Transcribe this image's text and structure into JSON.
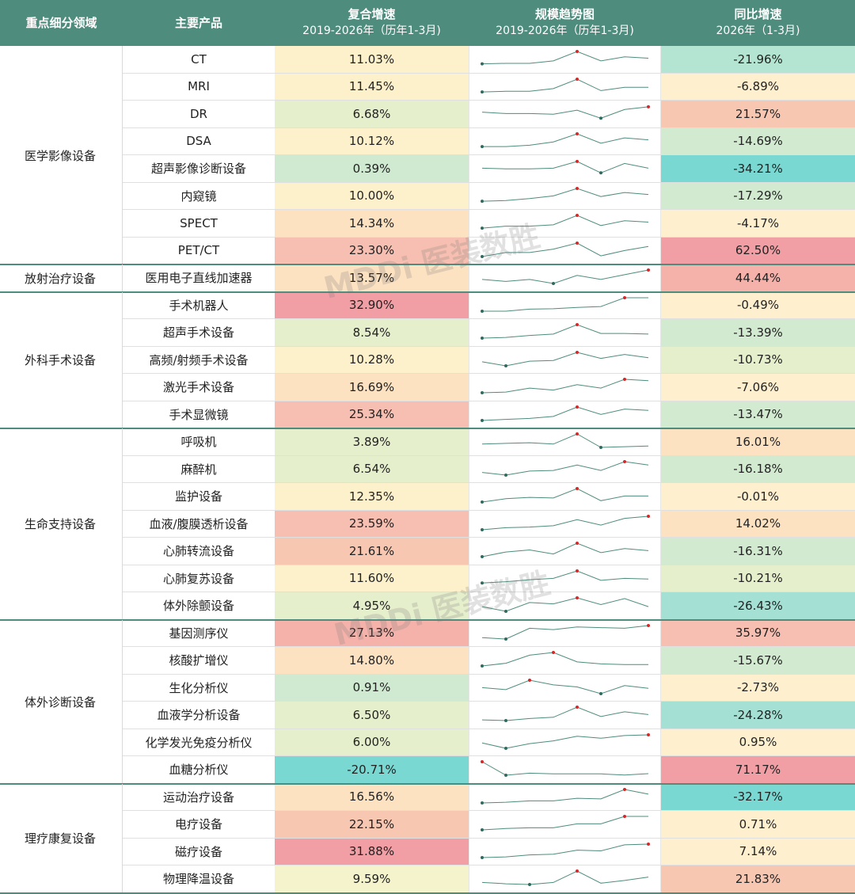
{
  "header": {
    "category": "重点细分领域",
    "product": "主要产品",
    "cagr_title": "复合增速",
    "cagr_sub": "2019-2026年（历年1-3月)",
    "trend_title": "规模趋势图",
    "trend_sub": "2019-2026年（历年1-3月)",
    "yoy_title": "同比增速",
    "yoy_sub": "2026年（1-3月)"
  },
  "watermark": "MDDi 医装数胜",
  "colors": {
    "header_bg": "#4e8c7d",
    "spark_line": "#4e8c7d",
    "spark_max": "#d62728",
    "spark_min": "#2e6b5e"
  },
  "groups": [
    {
      "name": "医学影像设备",
      "rows": [
        {
          "product": "CT",
          "cagr": "11.03%",
          "cagr_bg": "#fdf1cb",
          "yoy": "-21.96%",
          "yoy_bg": "#b4e4d2",
          "trend": [
            0.08,
            0.12,
            0.12,
            0.3,
            1.0,
            0.3,
            0.6,
            0.5
          ]
        },
        {
          "product": "MRI",
          "cagr": "11.45%",
          "cagr_bg": "#fdf1cb",
          "yoy": "-6.89%",
          "yoy_bg": "#fef0cf",
          "trend": [
            0.05,
            0.1,
            0.1,
            0.3,
            1.0,
            0.15,
            0.4,
            0.4
          ]
        },
        {
          "product": "DR",
          "cagr": "6.68%",
          "cagr_bg": "#e6efcc",
          "yoy": "21.57%",
          "yoy_bg": "#f8c7b2",
          "trend": [
            0.55,
            0.45,
            0.45,
            0.4,
            0.7,
            0.1,
            0.75,
            0.95
          ]
        },
        {
          "product": "DSA",
          "cagr": "10.12%",
          "cagr_bg": "#fdf1cb",
          "yoy": "-14.69%",
          "yoy_bg": "#d2ead0",
          "trend": [
            0.05,
            0.05,
            0.15,
            0.4,
            1.0,
            0.3,
            0.7,
            0.55
          ]
        },
        {
          "product": "超声影像诊断设备",
          "cagr": "0.39%",
          "cagr_bg": "#cfead0",
          "yoy": "-34.21%",
          "yoy_bg": "#7ad8d2",
          "trend": [
            0.45,
            0.4,
            0.4,
            0.45,
            0.95,
            0.1,
            0.8,
            0.45
          ]
        },
        {
          "product": "内窥镜",
          "cagr": "10.00%",
          "cagr_bg": "#fdf1cb",
          "yoy": "-17.29%",
          "yoy_bg": "#d2ead0",
          "trend": [
            0.05,
            0.1,
            0.25,
            0.45,
            1.0,
            0.4,
            0.7,
            0.55
          ]
        },
        {
          "product": "SPECT",
          "cagr": "14.34%",
          "cagr_bg": "#fde2c2",
          "yoy": "-4.17%",
          "yoy_bg": "#fef0cf",
          "trend": [
            0.05,
            0.2,
            0.2,
            0.3,
            1.0,
            0.25,
            0.6,
            0.5
          ]
        },
        {
          "product": "PET/CT",
          "cagr": "23.30%",
          "cagr_bg": "#f6bfb1",
          "yoy": "62.50%",
          "yoy_bg": "#f19ea4",
          "trend": [
            0.0,
            0.3,
            0.3,
            0.55,
            1.0,
            0.05,
            0.45,
            0.75
          ]
        },
        {
          "category_start": false
        }
      ]
    }
  ],
  "rows": [
    {
      "group": 0,
      "product": "CT",
      "cagr": "11.03%",
      "cagr_bg": "#fdf1cb",
      "yoy": "-21.96%",
      "yoy_bg": "#b4e4d2",
      "trend": [
        0.08,
        0.12,
        0.12,
        0.3,
        1.0,
        0.3,
        0.6,
        0.5
      ]
    },
    {
      "group": 0,
      "product": "MRI",
      "cagr": "11.45%",
      "cagr_bg": "#fdf1cb",
      "yoy": "-6.89%",
      "yoy_bg": "#fef0cf",
      "trend": [
        0.05,
        0.1,
        0.1,
        0.3,
        1.0,
        0.15,
        0.4,
        0.4
      ]
    },
    {
      "group": 0,
      "product": "DR",
      "cagr": "6.68%",
      "cagr_bg": "#e6efcc",
      "yoy": "21.57%",
      "yoy_bg": "#f8c7b2",
      "trend": [
        0.55,
        0.45,
        0.45,
        0.4,
        0.7,
        0.1,
        0.75,
        0.95
      ]
    },
    {
      "group": 0,
      "product": "DSA",
      "cagr": "10.12%",
      "cagr_bg": "#fdf1cb",
      "yoy": "-14.69%",
      "yoy_bg": "#d2ead0",
      "trend": [
        0.05,
        0.05,
        0.15,
        0.4,
        1.0,
        0.3,
        0.7,
        0.55
      ]
    },
    {
      "group": 0,
      "product": "超声影像诊断设备",
      "cagr": "0.39%",
      "cagr_bg": "#cfead0",
      "yoy": "-34.21%",
      "yoy_bg": "#7ad8d2",
      "trend": [
        0.45,
        0.4,
        0.4,
        0.45,
        0.95,
        0.1,
        0.8,
        0.45
      ]
    },
    {
      "group": 0,
      "product": "内窥镜",
      "cagr": "10.00%",
      "cagr_bg": "#fdf1cb",
      "yoy": "-17.29%",
      "yoy_bg": "#d2ead0",
      "trend": [
        0.05,
        0.1,
        0.25,
        0.45,
        1.0,
        0.4,
        0.7,
        0.55
      ]
    },
    {
      "group": 0,
      "product": "SPECT",
      "cagr": "14.34%",
      "cagr_bg": "#fde2c2",
      "yoy": "-4.17%",
      "yoy_bg": "#fef0cf",
      "trend": [
        0.05,
        0.2,
        0.2,
        0.3,
        1.0,
        0.25,
        0.6,
        0.5
      ]
    },
    {
      "group": 0,
      "product": "PET/CT",
      "cagr": "23.30%",
      "cagr_bg": "#f6bfb1",
      "yoy": "62.50%",
      "yoy_bg": "#f19ea4",
      "trend": [
        0.0,
        0.3,
        0.3,
        0.55,
        1.0,
        0.05,
        0.45,
        0.75
      ]
    },
    {
      "group": 1,
      "product": "医用电子直线加速器",
      "cagr": "13.57%",
      "cagr_bg": "#fde2c2",
      "yoy": "44.44%",
      "yoy_bg": "#f5b2ab",
      "trend": [
        0.3,
        0.15,
        0.3,
        0.0,
        0.6,
        0.3,
        0.65,
        1.0
      ]
    },
    {
      "group": 2,
      "product": "手术机器人",
      "cagr": "32.90%",
      "cagr_bg": "#f19ea4",
      "yoy": "-0.49%",
      "yoy_bg": "#fef0cf",
      "trend": [
        0.0,
        0.0,
        0.15,
        0.18,
        0.28,
        0.35,
        1.0,
        1.0
      ]
    },
    {
      "group": 2,
      "product": "超声手术设备",
      "cagr": "8.54%",
      "cagr_bg": "#e6efcc",
      "yoy": "-13.39%",
      "yoy_bg": "#d2ead0",
      "trend": [
        0.0,
        0.05,
        0.2,
        0.3,
        1.0,
        0.35,
        0.35,
        0.3
      ]
    },
    {
      "group": 2,
      "product": "高频/射频手术设备",
      "cagr": "10.28%",
      "cagr_bg": "#fdf1cb",
      "yoy": "-10.73%",
      "yoy_bg": "#e6efcc",
      "trend": [
        0.3,
        0.0,
        0.35,
        0.4,
        1.0,
        0.55,
        0.85,
        0.6
      ]
    },
    {
      "group": 2,
      "product": "激光手术设备",
      "cagr": "16.69%",
      "cagr_bg": "#fde2c2",
      "yoy": "-7.06%",
      "yoy_bg": "#fef0cf",
      "trend": [
        0.0,
        0.05,
        0.35,
        0.2,
        0.6,
        0.35,
        1.0,
        0.9
      ]
    },
    {
      "group": 2,
      "product": "手术显微镜",
      "cagr": "25.34%",
      "cagr_bg": "#f6bfb1",
      "yoy": "-13.47%",
      "yoy_bg": "#d2ead0",
      "trend": [
        0.0,
        0.08,
        0.15,
        0.3,
        1.0,
        0.45,
        0.85,
        0.75
      ]
    },
    {
      "group": 3,
      "product": "呼吸机",
      "cagr": "3.89%",
      "cagr_bg": "#e6efcc",
      "yoy": "16.01%",
      "yoy_bg": "#fde2c2",
      "trend": [
        0.25,
        0.3,
        0.35,
        0.25,
        1.0,
        0.0,
        0.05,
        0.1
      ]
    },
    {
      "group": 3,
      "product": "麻醉机",
      "cagr": "6.54%",
      "cagr_bg": "#e6efcc",
      "yoy": "-16.18%",
      "yoy_bg": "#d2ead0",
      "trend": [
        0.2,
        0.0,
        0.3,
        0.35,
        0.75,
        0.35,
        1.0,
        0.75
      ]
    },
    {
      "group": 3,
      "product": "监护设备",
      "cagr": "12.35%",
      "cagr_bg": "#fdf1cb",
      "yoy": "-0.01%",
      "yoy_bg": "#fef0cf",
      "trend": [
        0.0,
        0.25,
        0.35,
        0.3,
        1.0,
        0.1,
        0.45,
        0.45
      ]
    },
    {
      "group": 3,
      "product": "血液/腹膜透析设备",
      "cagr": "23.59%",
      "cagr_bg": "#f6bfb1",
      "yoy": "14.02%",
      "yoy_bg": "#fde2c2",
      "trend": [
        0.0,
        0.15,
        0.2,
        0.3,
        0.75,
        0.35,
        0.85,
        1.0
      ]
    },
    {
      "group": 3,
      "product": "心肺转流设备",
      "cagr": "21.61%",
      "cagr_bg": "#f8c7b2",
      "yoy": "-16.31%",
      "yoy_bg": "#d2ead0",
      "trend": [
        0.0,
        0.35,
        0.5,
        0.2,
        1.0,
        0.3,
        0.6,
        0.45
      ]
    },
    {
      "group": 3,
      "product": "心肺复苏设备",
      "cagr": "11.60%",
      "cagr_bg": "#fdf1cb",
      "yoy": "-10.21%",
      "yoy_bg": "#e6efcc",
      "trend": [
        0.1,
        0.2,
        0.35,
        0.45,
        1.0,
        0.3,
        0.45,
        0.4
      ]
    },
    {
      "group": 3,
      "product": "体外除颤设备",
      "cagr": "4.95%",
      "cagr_bg": "#e6efcc",
      "yoy": "-26.43%",
      "yoy_bg": "#a4e0d4",
      "trend": [
        0.35,
        0.0,
        0.65,
        0.55,
        1.0,
        0.5,
        0.95,
        0.35
      ]
    },
    {
      "group": 4,
      "product": "基因测序仪",
      "cagr": "27.13%",
      "cagr_bg": "#f5b2ab",
      "yoy": "35.97%",
      "yoy_bg": "#f6bfb1",
      "trend": [
        0.1,
        0.0,
        0.8,
        0.7,
        0.9,
        0.85,
        0.8,
        1.0
      ]
    },
    {
      "group": 4,
      "product": "核酸扩增仪",
      "cagr": "14.80%",
      "cagr_bg": "#fde2c2",
      "yoy": "-15.67%",
      "yoy_bg": "#d2ead0",
      "trend": [
        0.0,
        0.2,
        0.8,
        1.0,
        0.3,
        0.15,
        0.1,
        0.1
      ]
    },
    {
      "group": 4,
      "product": "生化分析仪",
      "cagr": "0.91%",
      "cagr_bg": "#cfead0",
      "yoy": "-2.73%",
      "yoy_bg": "#fef0cf",
      "trend": [
        0.45,
        0.3,
        1.0,
        0.65,
        0.5,
        0.0,
        0.6,
        0.4
      ]
    },
    {
      "group": 4,
      "product": "血液学分析设备",
      "cagr": "6.50%",
      "cagr_bg": "#e6efcc",
      "yoy": "-24.28%",
      "yoy_bg": "#a4e0d4",
      "trend": [
        0.05,
        0.0,
        0.15,
        0.25,
        1.0,
        0.3,
        0.65,
        0.45
      ]
    },
    {
      "group": 4,
      "product": "化学发光免疫分析仪",
      "cagr": "6.00%",
      "cagr_bg": "#e6efcc",
      "yoy": "0.95%",
      "yoy_bg": "#fef0cf",
      "trend": [
        0.4,
        0.0,
        0.35,
        0.55,
        0.9,
        0.75,
        0.95,
        1.0
      ]
    },
    {
      "group": 4,
      "product": "血糖分析仪",
      "cagr": "-20.71%",
      "cagr_bg": "#7ad8d2",
      "yoy": "71.17%",
      "yoy_bg": "#f19ea4",
      "trend": [
        1.0,
        0.0,
        0.15,
        0.1,
        0.1,
        0.1,
        0.02,
        0.12
      ]
    },
    {
      "group": 5,
      "product": "运动治疗设备",
      "cagr": "16.56%",
      "cagr_bg": "#fde2c2",
      "yoy": "-32.17%",
      "yoy_bg": "#7ad8d2",
      "trend": [
        0.0,
        0.05,
        0.15,
        0.15,
        0.35,
        0.3,
        1.0,
        0.65
      ]
    },
    {
      "group": 5,
      "product": "电疗设备",
      "cagr": "22.15%",
      "cagr_bg": "#f8c7b2",
      "yoy": "0.71%",
      "yoy_bg": "#fef0cf",
      "trend": [
        0.0,
        0.1,
        0.15,
        0.15,
        0.45,
        0.45,
        1.0,
        1.0
      ]
    },
    {
      "group": 5,
      "product": "磁疗设备",
      "cagr": "31.88%",
      "cagr_bg": "#f19ea4",
      "yoy": "7.14%",
      "yoy_bg": "#fef0cf",
      "trend": [
        0.0,
        0.05,
        0.2,
        0.25,
        0.55,
        0.5,
        0.95,
        1.0
      ]
    },
    {
      "group": 5,
      "product": "物理降温设备",
      "cagr": "9.59%",
      "cagr_bg": "#f4f3cb",
      "yoy": "21.83%",
      "yoy_bg": "#f8c7b2",
      "trend": [
        0.15,
        0.05,
        0.0,
        0.15,
        1.0,
        0.1,
        0.3,
        0.55
      ]
    }
  ],
  "categories": [
    "医学影像设备",
    "放射治疗设备",
    "外科手术设备",
    "生命支持设备",
    "体外诊断设备",
    "理疗康复设备"
  ]
}
